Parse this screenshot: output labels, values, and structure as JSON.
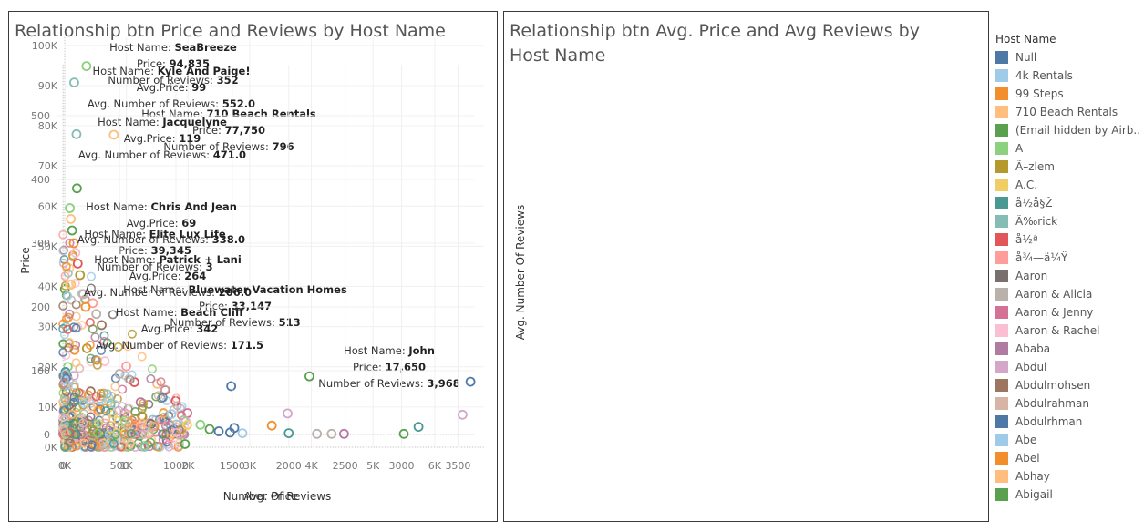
{
  "chart_data": [
    {
      "type": "scatter",
      "title": "Relationship btn Price and Reviews by Host Name",
      "xlabel": "Number Of Reviews",
      "ylabel": "Price",
      "xlim": [
        0,
        6800
      ],
      "ylim": [
        0,
        102000
      ],
      "x_ticks": [
        {
          "v": 0,
          "label": "0K"
        },
        {
          "v": 1000,
          "label": "1K"
        },
        {
          "v": 2000,
          "label": "2K"
        },
        {
          "v": 3000,
          "label": "3K"
        },
        {
          "v": 4000,
          "label": "4K"
        },
        {
          "v": 5000,
          "label": "5K"
        },
        {
          "v": 6000,
          "label": "6K"
        }
      ],
      "y_ticks": [
        {
          "v": 0,
          "label": "0K"
        },
        {
          "v": 10000,
          "label": "10K"
        },
        {
          "v": 20000,
          "label": "20K"
        },
        {
          "v": 30000,
          "label": "30K"
        },
        {
          "v": 40000,
          "label": "40K"
        },
        {
          "v": 50000,
          "label": "50K"
        },
        {
          "v": 60000,
          "label": "60K"
        },
        {
          "v": 70000,
          "label": "70K"
        },
        {
          "v": 80000,
          "label": "80K"
        },
        {
          "v": 90000,
          "label": "90K"
        },
        {
          "v": 100000,
          "label": "100K"
        }
      ],
      "points": [
        {
          "x": 352,
          "y": 94835,
          "c": "#8CD17D"
        },
        {
          "x": 796,
          "y": 77750,
          "c": "#FFBE7D"
        },
        {
          "x": 3,
          "y": 39345,
          "c": "#59A14F"
        },
        {
          "x": 513,
          "y": 33147,
          "c": "#BAB0AC"
        },
        {
          "x": 3968,
          "y": 17650,
          "c": "#59A14F"
        },
        {
          "x": 6580,
          "y": 16300,
          "c": "#4E79A7"
        },
        {
          "x": 2700,
          "y": 15200,
          "c": "#4E79A7"
        },
        {
          "x": 2750,
          "y": 4800,
          "c": "#4E79A7"
        },
        {
          "x": 2350,
          "y": 4500,
          "c": "#59A14F"
        },
        {
          "x": 2200,
          "y": 5600,
          "c": "#8CD17D"
        },
        {
          "x": 1950,
          "y": 800,
          "c": "#59A14F"
        },
        {
          "x": 1700,
          "y": 2500,
          "c": "#FF9D9A"
        },
        {
          "x": 160,
          "y": 24200,
          "c": "#F28E2B"
        },
        {
          "x": 360,
          "y": 24600,
          "c": "#B6992D"
        },
        {
          "x": 650,
          "y": 21400,
          "c": "#FABFD2"
        },
        {
          "x": 50,
          "y": 20000,
          "c": "#8CD17D"
        },
        {
          "x": 150,
          "y": 17800,
          "c": "#D4A6C8"
        },
        {
          "x": 1130,
          "y": 16200,
          "c": "#E15759"
        },
        {
          "x": 1500,
          "y": 15800,
          "c": "#FFBE7D"
        },
        {
          "x": 1630,
          "y": 14200,
          "c": "#E15759"
        },
        {
          "x": 420,
          "y": 13900,
          "c": "#9D7660"
        },
        {
          "x": 1800,
          "y": 11500,
          "c": "#E15759"
        },
        {
          "x": 1230,
          "y": 11200,
          "c": "#B07AA1"
        },
        {
          "x": 1990,
          "y": 8500,
          "c": "#D37295"
        },
        {
          "x": 80,
          "y": 7300,
          "c": "#4E79A7"
        },
        {
          "x": 1400,
          "y": 5800,
          "c": "#79706E"
        },
        {
          "x": 1450,
          "y": 5200,
          "c": "#F28E2B"
        },
        {
          "x": 1250,
          "y": 7800,
          "c": "#B6992D"
        },
        {
          "x": 1080,
          "y": 3200,
          "c": "#FF9D9A"
        },
        {
          "x": 1620,
          "y": 6800,
          "c": "#D37295"
        }
      ],
      "annotations": [
        {
          "lines": [
            {
              "k": "Host Name: ",
              "v": "SeaBreeze"
            },
            {
              "k": "Price: ",
              "v": "94,835"
            },
            {
              "k": "Number of Reviews: ",
              "v": "352"
            }
          ]
        },
        {
          "lines": [
            {
              "k": "Host Name: ",
              "v": "710 Beach Rentals"
            },
            {
              "k": "Price: ",
              "v": "77,750"
            },
            {
              "k": "Number of Reviews: ",
              "v": "796"
            }
          ]
        },
        {
          "lines": [
            {
              "k": "Host Name: ",
              "v": "Elite Lux Life"
            },
            {
              "k": "Price: ",
              "v": "39,345"
            },
            {
              "k": "Number of Reviews: ",
              "v": "3"
            }
          ]
        },
        {
          "lines": [
            {
              "k": "Host Name: ",
              "v": "Bluewater Vacation Homes"
            },
            {
              "k": "Price: ",
              "v": "33,147"
            },
            {
              "k": "Number of Reviews: ",
              "v": "513"
            }
          ]
        },
        {
          "lines": [
            {
              "k": "Host Name: ",
              "v": "John"
            },
            {
              "k": "Price: ",
              "v": "17,650"
            },
            {
              "k": "Number of Reviews: ",
              "v": "3,968"
            }
          ]
        }
      ]
    },
    {
      "type": "scatter",
      "title": "Relationship btn Avg. Price and Avg Reviews by Host Name",
      "xlabel": "Avg. Price",
      "ylabel": "Avg. Number Of Reviews",
      "xlim": [
        -50,
        3650
      ],
      "ylim": [
        -20,
        580
      ],
      "x_ticks": [
        {
          "v": 0,
          "label": "0"
        },
        {
          "v": 500,
          "label": "500"
        },
        {
          "v": 1000,
          "label": "1000"
        },
        {
          "v": 1500,
          "label": "1500"
        },
        {
          "v": 2000,
          "label": "2000"
        },
        {
          "v": 2500,
          "label": "2500"
        },
        {
          "v": 3000,
          "label": "3000"
        },
        {
          "v": 3500,
          "label": "3500"
        }
      ],
      "y_ticks": [
        {
          "v": 0,
          "label": "0"
        },
        {
          "v": 100,
          "label": "100"
        },
        {
          "v": 200,
          "label": "200"
        },
        {
          "v": 300,
          "label": "300"
        },
        {
          "v": 400,
          "label": "400"
        },
        {
          "v": 500,
          "label": "500"
        }
      ],
      "points": [
        {
          "x": 99,
          "y": 552,
          "c": "#86BCB6"
        },
        {
          "x": 119,
          "y": 471,
          "c": "#86BCB6"
        },
        {
          "x": 123,
          "y": 386,
          "c": "#59A14F"
        },
        {
          "x": 69,
          "y": 338,
          "c": "#FFBE7D"
        },
        {
          "x": 264,
          "y": 206,
          "c": "#FF9D9A"
        },
        {
          "x": 342,
          "y": 171.5,
          "c": "#9D7660"
        },
        {
          "x": 60,
          "y": 355,
          "c": "#8CD17D"
        },
        {
          "x": 80,
          "y": 320,
          "c": "#59A14F"
        },
        {
          "x": 95,
          "y": 300,
          "c": "#F28E2B"
        },
        {
          "x": 110,
          "y": 285,
          "c": "#FABFD2"
        },
        {
          "x": 130,
          "y": 268,
          "c": "#E15759"
        },
        {
          "x": 150,
          "y": 250,
          "c": "#B6992D"
        },
        {
          "x": 70,
          "y": 235,
          "c": "#FFBE7D"
        },
        {
          "x": 180,
          "y": 220,
          "c": "#D4A6C8"
        },
        {
          "x": 200,
          "y": 200,
          "c": "#F28E2B"
        },
        {
          "x": 560,
          "y": 107,
          "c": "#FF9D9A"
        },
        {
          "x": 500,
          "y": 95,
          "c": "#BAB0AC"
        },
        {
          "x": 960,
          "y": 32,
          "c": "#A0CBE8"
        },
        {
          "x": 1100,
          "y": 15,
          "c": "#F1CE63"
        },
        {
          "x": 1380,
          "y": 5,
          "c": "#4E79A7"
        },
        {
          "x": 1480,
          "y": 3,
          "c": "#4E79A7"
        },
        {
          "x": 1590,
          "y": 2,
          "c": "#A0CBE8"
        },
        {
          "x": 1850,
          "y": 14,
          "c": "#F28E2B"
        },
        {
          "x": 1990,
          "y": 33,
          "c": "#D4A6C8"
        },
        {
          "x": 2000,
          "y": 2,
          "c": "#499894"
        },
        {
          "x": 2250,
          "y": 1,
          "c": "#BAB0AC"
        },
        {
          "x": 2380,
          "y": 1,
          "c": "#BAB0AC"
        },
        {
          "x": 2490,
          "y": 1,
          "c": "#B07AA1"
        },
        {
          "x": 3020,
          "y": 1,
          "c": "#59A14F"
        },
        {
          "x": 3150,
          "y": 12,
          "c": "#499894"
        },
        {
          "x": 3540,
          "y": 31,
          "c": "#D4A6C8"
        }
      ],
      "annotations": [
        {
          "lines": [
            {
              "k": "Host Name: ",
              "v": "Kyle And Paige!"
            },
            {
              "k": "Avg.Price: ",
              "v": "99"
            },
            {
              "k": "Avg. Number of Reviews: ",
              "v": "552.0"
            }
          ]
        },
        {
          "lines": [
            {
              "k": "Host Name: ",
              "v": "Jacquelyne"
            },
            {
              "k": "Avg.Price: ",
              "v": "119"
            },
            {
              "k": "Avg. Number of Reviews: ",
              "v": "471.0"
            }
          ]
        },
        {
          "lines": [
            {
              "k": "Host Name: ",
              "v": "Chris  And Jean"
            },
            {
              "k": "Avg.Price: ",
              "v": "69"
            },
            {
              "k": "Avg. Number of Reviews: ",
              "v": "338.0"
            }
          ]
        },
        {
          "lines": [
            {
              "k": "Host Name: ",
              "v": "Patrick + Lani"
            },
            {
              "k": "Avg.Price: ",
              "v": "264"
            },
            {
              "k": "Avg. Number of Reviews: ",
              "v": "206.0"
            }
          ]
        },
        {
          "lines": [
            {
              "k": "Host Name: ",
              "v": "Beach Cliff"
            },
            {
              "k": "Avg.Price: ",
              "v": "342"
            },
            {
              "k": "Avg. Number of Reviews: ",
              "v": "171.5"
            }
          ]
        }
      ]
    }
  ],
  "legend": {
    "title": "Host Name",
    "items": [
      {
        "label": "Null",
        "color": "#4E79A7"
      },
      {
        "label": "4k Rentals",
        "color": "#A0CBE8"
      },
      {
        "label": "99 Steps",
        "color": "#F28E2B"
      },
      {
        "label": "710 Beach Rentals",
        "color": "#FFBE7D"
      },
      {
        "label": "(Email hidden by Airb..",
        "color": "#59A14F"
      },
      {
        "label": "A",
        "color": "#8CD17D"
      },
      {
        "label": "Ã–zlem",
        "color": "#B6992D"
      },
      {
        "label": "A.C.",
        "color": "#F1CE63"
      },
      {
        "label": "å½­å§Ž",
        "color": "#499894"
      },
      {
        "label": "Ã‰rick",
        "color": "#86BCB6"
      },
      {
        "label": "å½ª",
        "color": "#E15759"
      },
      {
        "label": "å¾—ä¼Ÿ",
        "color": "#FF9D9A"
      },
      {
        "label": "Aaron",
        "color": "#79706E"
      },
      {
        "label": "Aaron & Alicia",
        "color": "#BAB0AC"
      },
      {
        "label": "Aaron & Jenny",
        "color": "#D37295"
      },
      {
        "label": "Aaron & Rachel",
        "color": "#FABFD2"
      },
      {
        "label": "Ababa",
        "color": "#B07AA1"
      },
      {
        "label": "Abdul",
        "color": "#D4A6C8"
      },
      {
        "label": "Abdulmohsen",
        "color": "#9D7660"
      },
      {
        "label": "Abdulrahman",
        "color": "#D7B5A6"
      },
      {
        "label": "Abdulrhman",
        "color": "#4E79A7"
      },
      {
        "label": "Abe",
        "color": "#A0CBE8"
      },
      {
        "label": "Abel",
        "color": "#F28E2B"
      },
      {
        "label": "Abhay",
        "color": "#FFBE7D"
      },
      {
        "label": "Abigail",
        "color": "#59A14F"
      }
    ]
  }
}
